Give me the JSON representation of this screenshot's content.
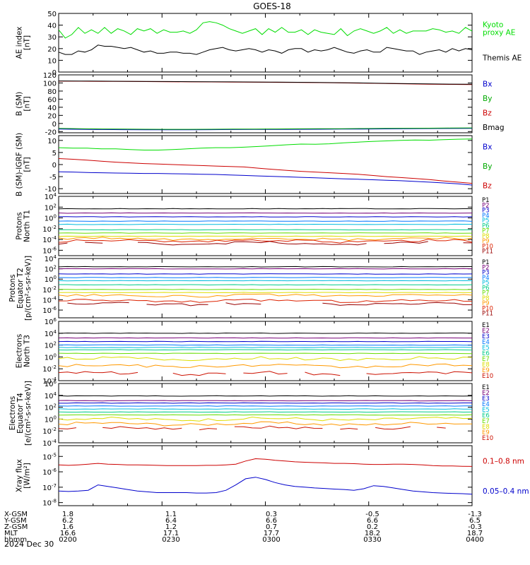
{
  "title": "GOES-18",
  "date": "2024 Dec 30",
  "ephemeris": {
    "labels": [
      "X-GSM",
      "Y-GSM",
      "Z-GSM",
      "MLT",
      "hhmm"
    ],
    "columns": [
      [
        "1.8",
        "6.2",
        "1.6",
        "16.6",
        "0200"
      ],
      [
        "1.1",
        "6.4",
        "1.2",
        "17.1",
        "0230"
      ],
      [
        "0.3",
        "6.6",
        "0.7",
        "17.7",
        "0300"
      ],
      [
        "-0.5",
        "6.6",
        "0.2",
        "18.2",
        "0330"
      ],
      [
        "-1.3",
        "6.5",
        "-0.3",
        "18.7",
        "0400"
      ]
    ]
  },
  "chart_data": [
    {
      "type": "line",
      "id": "ae",
      "ylabel": [
        "AE index",
        "[nT]"
      ],
      "ylim": [
        0,
        50
      ],
      "ticks": [
        0,
        10,
        20,
        30,
        40,
        50
      ],
      "legend": [
        {
          "lines": [
            "Kyoto",
            "proxy AE"
          ],
          "color": "#00dd00"
        },
        {
          "lines": [
            "Themis AE"
          ],
          "color": "#000000"
        }
      ],
      "series": [
        {
          "name": "Kyoto proxy AE",
          "color": "#00dd00",
          "values": [
            36,
            29,
            32,
            38,
            33,
            36,
            33,
            38,
            33,
            37,
            35,
            32,
            37,
            35,
            37,
            33,
            36,
            34,
            34,
            35,
            33,
            36,
            42,
            43,
            42,
            40,
            37,
            35,
            33,
            35,
            37,
            32,
            37,
            34,
            38,
            34,
            34,
            36,
            32,
            36,
            34,
            33,
            32,
            37,
            31,
            35,
            37,
            35,
            33,
            35,
            38,
            33,
            36,
            33,
            35,
            35,
            35,
            37,
            36,
            34,
            35,
            33,
            38,
            35
          ]
        },
        {
          "name": "Themis AE",
          "color": "#000000",
          "values": [
            17,
            15,
            15,
            18,
            17,
            19,
            23,
            22,
            22,
            21,
            20,
            21,
            19,
            17,
            18,
            16,
            16,
            17,
            17,
            16,
            16,
            15,
            17,
            19,
            20,
            21,
            19,
            18,
            19,
            20,
            19,
            17,
            19,
            18,
            16,
            19,
            20,
            20,
            17,
            19,
            18,
            19,
            21,
            19,
            17,
            16,
            18,
            19,
            17,
            17,
            21,
            20,
            19,
            18,
            18,
            15,
            17,
            18,
            19,
            17,
            20,
            18,
            20,
            19
          ]
        }
      ]
    },
    {
      "type": "line",
      "id": "bsm",
      "ylabel": [
        "B (SM)",
        "[nT]"
      ],
      "ylim": [
        -23,
        120
      ],
      "ticks": [
        -20,
        0,
        20,
        40,
        60,
        80,
        100,
        120
      ],
      "legend": [
        {
          "lines": [
            "Bx"
          ],
          "color": "#0000cc"
        },
        {
          "lines": [
            "By"
          ],
          "color": "#00aa00"
        },
        {
          "lines": [
            "Bz"
          ],
          "color": "#cc0000"
        },
        {
          "lines": [
            "Bmag"
          ],
          "color": "#000000"
        }
      ],
      "series": [
        {
          "name": "Bz",
          "color": "#cc0000",
          "values": [
            104.5,
            104.3,
            104.0,
            103.7,
            103.4,
            103.1,
            102.8,
            102.5,
            102.2,
            101.9,
            101.6,
            101.2,
            100.8,
            100.2,
            99.5,
            98.5,
            97.8,
            97.0,
            96.5,
            96.0
          ]
        },
        {
          "name": "Bmag",
          "color": "#000000",
          "values": [
            105,
            104.8,
            104.5,
            104.2,
            103.9,
            103.6,
            103.3,
            103.0,
            102.7,
            102.4,
            102.1,
            101.7,
            101.3,
            100.7,
            100.0,
            99.1,
            98.4,
            97.7,
            97.2,
            96.8
          ]
        },
        {
          "name": "Bx",
          "color": "#0000cc",
          "values": [
            -14,
            -14.5,
            -15,
            -15.3,
            -15.5,
            -15.6,
            -15.5,
            -15.3,
            -15.0,
            -14.8,
            -14.6,
            -14.4,
            -14.2,
            -14.0,
            -13.8,
            -13.4,
            -13.0,
            -12.6,
            -12.3,
            -12.0
          ]
        },
        {
          "name": "By",
          "color": "#00aa00",
          "values": [
            -12,
            -13,
            -13.5,
            -14,
            -14.3,
            -14.5,
            -14.4,
            -14.2,
            -14.0,
            -13.8,
            -13.6,
            -13.3,
            -13.0,
            -12.8,
            -12.5,
            -12.2,
            -11.9,
            -11.6,
            -11.3,
            -11.0
          ]
        }
      ]
    },
    {
      "type": "line",
      "id": "bigrf",
      "ylabel": [
        "B (SM)-IGRF (SM)",
        "[nT]"
      ],
      "ylim": [
        -12,
        12
      ],
      "ticks": [
        -10,
        -5,
        0,
        5,
        10
      ],
      "legend": [
        {
          "lines": [
            "Bx"
          ],
          "color": "#0000cc"
        },
        {
          "lines": [
            "By"
          ],
          "color": "#00aa00"
        },
        {
          "lines": [
            "Bz"
          ],
          "color": "#cc0000"
        }
      ],
      "series": [
        {
          "name": "By",
          "color": "#00dd00",
          "values": [
            7,
            6.8,
            6.8,
            6.5,
            6.5,
            6.2,
            6.0,
            6.0,
            6.2,
            6.5,
            6.8,
            7.0,
            7.0,
            7.2,
            7.5,
            7.8,
            8.2,
            8.5,
            8.4,
            8.6,
            9.0,
            9.3,
            9.6,
            9.8,
            10.0,
            10.2,
            10.1,
            10.3,
            10.5,
            10.6
          ]
        },
        {
          "name": "Bz",
          "color": "#cc0000",
          "values": [
            2.5,
            2.2,
            1.8,
            1.4,
            1.0,
            0.7,
            0.4,
            0.2,
            0.0,
            -0.2,
            -0.4,
            -0.6,
            -0.8,
            -1.0,
            -1.5,
            -2.0,
            -2.4,
            -2.8,
            -3.1,
            -3.4,
            -3.7,
            -4.0,
            -4.5,
            -5.0,
            -5.4,
            -5.8,
            -6.2,
            -6.8,
            -7.3,
            -7.8
          ]
        },
        {
          "name": "Bx",
          "color": "#0000cc",
          "values": [
            -3,
            -3.1,
            -3.3,
            -3.4,
            -3.5,
            -3.6,
            -3.7,
            -3.7,
            -3.8,
            -3.9,
            -4.0,
            -4.1,
            -4.3,
            -4.5,
            -4.7,
            -4.9,
            -5.1,
            -5.3,
            -5.5,
            -5.7,
            -5.9,
            -6.1,
            -6.3,
            -6.5,
            -6.7,
            -7.0,
            -7.3,
            -7.6,
            -8.0,
            -8.5
          ]
        }
      ]
    },
    {
      "type": "line",
      "id": "pn",
      "log": true,
      "ylabel": [
        "Protons",
        "North T1"
      ],
      "ylim": [
        -7,
        4
      ],
      "ticks": [
        4,
        2,
        0,
        -2,
        -4,
        -6
      ],
      "tick_labels": [
        "10^4",
        "10^2",
        "10^0",
        "10^-2",
        "10^-4",
        "10^-6"
      ],
      "legend_labels": [
        "P1",
        "P2",
        "P3",
        "P4",
        "P5",
        "P6",
        "P7",
        "P8",
        "P9",
        "P10",
        "P11"
      ],
      "levels": [
        1.7,
        0.9,
        0.2,
        -0.6,
        -1.2,
        -2.2,
        -2.8,
        -3.4,
        -3.9,
        -4.3,
        -4.7
      ],
      "colors": [
        "#000000",
        "#770077",
        "#0000cc",
        "#0077ff",
        "#00bbdd",
        "#00cc88",
        "#66dd00",
        "#dddd00",
        "#ff9900",
        "#dd2200",
        "#990000"
      ]
    },
    {
      "type": "line",
      "id": "pe",
      "log": true,
      "ylabel": [
        "Protons",
        "Equator T2",
        "[p/(cm²-s-sr-keV)]"
      ],
      "ylim": [
        -7.5,
        4
      ],
      "ticks": [
        4,
        2,
        0,
        -2,
        -4,
        -6
      ],
      "tick_labels": [
        "10^4",
        "10^2",
        "10^0",
        "10^-2",
        "10^-4",
        "10^-6"
      ],
      "legend_labels": [
        "P1",
        "P2",
        "P3",
        "P4",
        "P5",
        "P6",
        "P7",
        "P8",
        "P9",
        "P10",
        "P11"
      ],
      "levels": [
        2.4,
        2.0,
        1.0,
        0.3,
        -0.3,
        -1.1,
        -2.0,
        -2.6,
        -3.2,
        -4.2,
        -4.8
      ],
      "colors": [
        "#000000",
        "#770077",
        "#0000cc",
        "#0077ff",
        "#00bbdd",
        "#00cc88",
        "#66dd00",
        "#dddd00",
        "#ff9900",
        "#dd2200",
        "#990000"
      ]
    },
    {
      "type": "line",
      "id": "en",
      "log": true,
      "ylabel": [
        "Electrons",
        "North T3"
      ],
      "ylim": [
        -4,
        6
      ],
      "ticks": [
        6,
        4,
        2,
        0,
        -2,
        -4
      ],
      "tick_labels": [
        "10^6",
        "10^4",
        "10^2",
        "10^0",
        "10^-2",
        "10^-4"
      ],
      "legend_labels": [
        "E1",
        "E2",
        "E3",
        "E4",
        "E5",
        "E6",
        "E7",
        "E8",
        "E9",
        "E10"
      ],
      "levels": [
        4.0,
        3.2,
        2.6,
        2.0,
        1.6,
        1.2,
        0.6,
        -0.3,
        -1.5,
        -2.8
      ],
      "colors": [
        "#000000",
        "#770077",
        "#0000cc",
        "#0077ff",
        "#00bbdd",
        "#00cc88",
        "#66dd00",
        "#dddd00",
        "#ff9900",
        "#cc1100"
      ]
    },
    {
      "type": "line",
      "id": "ee",
      "log": true,
      "ylabel": [
        "Electrons",
        "Equator T4",
        "[e/(cm²-s-sr-keV)]"
      ],
      "ylim": [
        -4,
        6
      ],
      "ticks": [
        6,
        4,
        2,
        0,
        -2,
        -4
      ],
      "tick_labels": [
        "10^6",
        "10^4",
        "10^2",
        "10^0",
        "10^-2",
        "10^-4"
      ],
      "legend_labels": [
        "E1",
        "E2",
        "E3",
        "E4",
        "E5",
        "E6",
        "E7",
        "E8",
        "E9",
        "E10"
      ],
      "levels": [
        3.9,
        3.1,
        2.7,
        2.2,
        1.7,
        1.2,
        0.7,
        0.0,
        -0.8,
        -1.5
      ],
      "colors": [
        "#000000",
        "#770077",
        "#0000cc",
        "#0077ff",
        "#00bbdd",
        "#00cc88",
        "#66dd00",
        "#dddd00",
        "#ff9900",
        "#cc1100"
      ]
    },
    {
      "type": "line",
      "id": "xray",
      "log": true,
      "ylabel": [
        "Xray flux",
        "[W/m²]"
      ],
      "ylim": [
        -8.2,
        -4.3
      ],
      "ticks": [
        -5,
        -6,
        -7,
        -8
      ],
      "tick_labels": [
        "10^-5",
        "10^-6",
        "10^-7",
        "10^-8"
      ],
      "legend": [
        {
          "lines": [
            "0.1–0.8 nm"
          ],
          "color": "#cc0000"
        },
        {
          "lines": [
            "0.05–0.4 nm"
          ],
          "color": "#0000cc"
        }
      ],
      "series": [
        {
          "name": "0.1–0.8 nm",
          "color": "#cc0000",
          "values": [
            -5.55,
            -5.58,
            -5.55,
            -5.5,
            -5.45,
            -5.5,
            -5.52,
            -5.55,
            -5.55,
            -5.56,
            -5.58,
            -5.6,
            -5.6,
            -5.6,
            -5.6,
            -5.58,
            -5.58,
            -5.55,
            -5.5,
            -5.3,
            -5.15,
            -5.18,
            -5.25,
            -5.3,
            -5.35,
            -5.38,
            -5.4,
            -5.42,
            -5.45,
            -5.45,
            -5.47,
            -5.5,
            -5.52,
            -5.52,
            -5.5,
            -5.5,
            -5.52,
            -5.55,
            -5.6,
            -5.62,
            -5.62,
            -5.64,
            -5.65
          ]
        },
        {
          "name": "0.05–0.4 nm",
          "color": "#0000cc",
          "values": [
            -7.25,
            -7.28,
            -7.25,
            -7.2,
            -6.85,
            -6.95,
            -7.05,
            -7.15,
            -7.25,
            -7.3,
            -7.35,
            -7.35,
            -7.35,
            -7.35,
            -7.38,
            -7.38,
            -7.35,
            -7.2,
            -6.85,
            -6.45,
            -6.35,
            -6.5,
            -6.7,
            -6.85,
            -6.95,
            -7.0,
            -7.05,
            -7.08,
            -7.12,
            -7.15,
            -7.2,
            -7.1,
            -6.9,
            -6.95,
            -7.05,
            -7.15,
            -7.25,
            -7.3,
            -7.35,
            -7.38,
            -7.4,
            -7.42,
            -7.45
          ]
        }
      ]
    }
  ]
}
